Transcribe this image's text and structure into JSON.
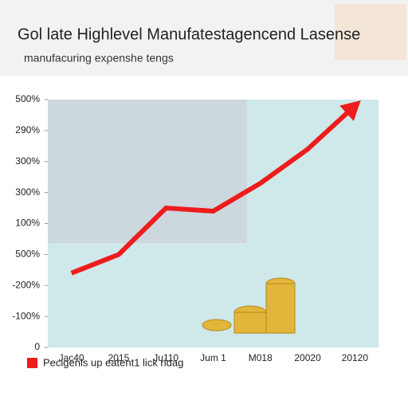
{
  "chart_data": {
    "type": "line",
    "title": "Gol late Highlevel Manufatestagencend Lasense",
    "subtitle": "manufacuring exρenshe tengs",
    "categories": [
      "Jac40",
      "2015",
      "Ju110",
      "Jum 1",
      "M018",
      "20020",
      "20120"
    ],
    "series": [
      {
        "name": "Pecigenls up eatent1 lick ridag",
        "color": "#ee1c1c",
        "values": [
          2.4,
          3.0,
          4.5,
          4.4,
          5.3,
          6.4,
          7.8
        ]
      }
    ],
    "ylim": [
      0,
      8
    ],
    "yticks": [
      0,
      {
        "value": 1,
        "label": "-100%"
      },
      {
        "value": 2,
        "label": "-200%"
      },
      {
        "value": 3,
        "label": "500%"
      },
      {
        "value": 4,
        "label": "100%"
      },
      {
        "value": 5,
        "label": "300%"
      },
      {
        "value": 6,
        "label": "300%"
      },
      {
        "value": 7,
        "label": "290%"
      },
      {
        "value": 8,
        "label": "500%"
      }
    ]
  }
}
